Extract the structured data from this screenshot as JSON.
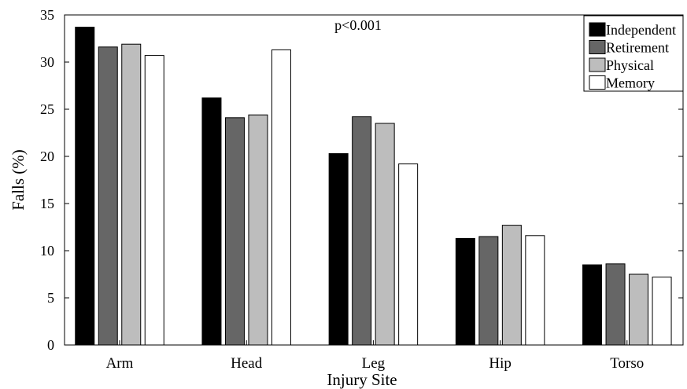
{
  "chart_data": {
    "type": "bar",
    "title": "",
    "annotation": "p<0.001",
    "xlabel": "Injury Site",
    "ylabel": "Falls (%)",
    "ylim": [
      0,
      35
    ],
    "yticks": [
      0,
      5,
      10,
      15,
      20,
      25,
      30,
      35
    ],
    "categories": [
      "Arm",
      "Head",
      "Leg",
      "Hip",
      "Torso"
    ],
    "series": [
      {
        "name": "Independent",
        "color": "#000000",
        "values": [
          33.7,
          26.2,
          20.3,
          11.3,
          8.5
        ]
      },
      {
        "name": "Retirement",
        "color": "#666666",
        "values": [
          31.6,
          24.1,
          24.2,
          11.5,
          8.6
        ]
      },
      {
        "name": "Physical",
        "color": "#bdbdbd",
        "values": [
          31.9,
          24.4,
          23.5,
          12.7,
          7.5
        ]
      },
      {
        "name": "Memory",
        "color": "#ffffff",
        "values": [
          30.7,
          31.3,
          19.2,
          11.6,
          7.2
        ]
      }
    ],
    "legend_position": "top-right",
    "grid": false
  }
}
